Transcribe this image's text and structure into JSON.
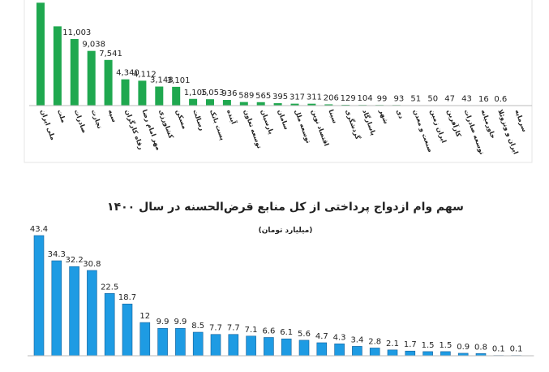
{
  "chart_data": [
    {
      "type": "bar",
      "categories": [
        "ملی ایران",
        "ملت",
        "صادرات",
        "تجارت",
        "سپه",
        "رفاه کارگران",
        "مهر امام رضا",
        "کشاورزی",
        "مسکن",
        "رسالت",
        "پست بانک",
        "آینده",
        "توسعه تعاون",
        "پارسیان",
        "سامان",
        "توسعه ملل",
        "اقتصاد نوین",
        "سینا",
        "گردشگری",
        "پاسارگاد",
        "شهر",
        "دی",
        "صنعت و معدن",
        "ایران زمین",
        "کارآفرین",
        "توسعه صادرات",
        "خاورمیانه",
        "ایران و ونزوئلا",
        "سرمایه"
      ],
      "values": [
        17000,
        13100,
        11003,
        9038,
        7541,
        4340,
        4112,
        3148,
        3101,
        1105,
        1053,
        936,
        589,
        565,
        395,
        317,
        311,
        206,
        129,
        104,
        99,
        93,
        51,
        50,
        47,
        43,
        16,
        0.6,
        0
      ],
      "value_labels": [
        null,
        null,
        "11,003",
        "9,038",
        "7,541",
        "4,340",
        "4,112",
        "3,148",
        "3,101",
        "1,105",
        "1,053",
        "936",
        "589",
        "565",
        "395",
        "317",
        "311",
        "206",
        "129",
        "104",
        "99",
        "93",
        "51",
        "50",
        "47",
        "43",
        "16",
        "0.6",
        null
      ],
      "color": "#1fa84f"
    },
    {
      "type": "bar",
      "title": "سهم وام ازدواج پرداختی از کل منابع قرض‌الحسنه در سال ۱۴۰۰",
      "subtitle": "(میلیارد تومان)",
      "categories": [
        null,
        null,
        null,
        null,
        null,
        null,
        null,
        null,
        null,
        null,
        null,
        null,
        null,
        null,
        null,
        null,
        null,
        null,
        null,
        null,
        null,
        null,
        null,
        null,
        null,
        null,
        null,
        null
      ],
      "values": [
        43.4,
        34.3,
        32.2,
        30.8,
        22.5,
        18.7,
        12,
        9.9,
        9.9,
        8.5,
        7.7,
        7.7,
        7.1,
        6.6,
        6.1,
        5.6,
        4.7,
        4.3,
        3.4,
        2.8,
        2.1,
        1.7,
        1.5,
        1.5,
        0.9,
        0.8,
        0.1,
        0.1
      ],
      "color": "#1e9be3"
    }
  ]
}
